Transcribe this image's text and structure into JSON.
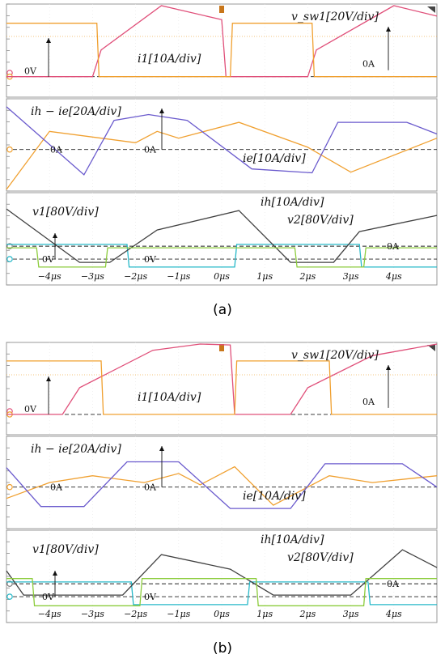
{
  "panels": [
    {
      "caption": "(a)",
      "x_ticks": [
        "−4μs",
        "−3μs",
        "−2μs",
        "−1μs",
        "0μs",
        "1μs",
        "2μs",
        "3μs",
        "4μs"
      ],
      "colors": {
        "vsw": "#e0507a",
        "i1": "#f0a030",
        "ihie": "#f0a030",
        "ie": "#6a5acd",
        "v1": "#26b8c8",
        "ih": "#404040",
        "v2": "#8ccc3c"
      },
      "labels": {
        "vsw": "v_sw1[20V/div]",
        "i1": "i1[10A/div]",
        "ihie": "ih − ie[20A/div]",
        "ie": "ie[10A/div]",
        "v1": "v1[80V/div]",
        "ih": "ih[10A/div]",
        "v2": "v2[80V/div]"
      },
      "zero_labels": {
        "top_v": "0V",
        "top_a": "0A",
        "mid_a1": "0A",
        "mid_a2": "0A",
        "bot_v1": "0V",
        "bot_v2": "0V",
        "bot_a": "0A"
      }
    },
    {
      "caption": "(b)",
      "x_ticks": [
        "−4μs",
        "−3μs",
        "−2μs",
        "−1μs",
        "0μs",
        "1μs",
        "2μs",
        "3μs",
        "4μs"
      ],
      "colors": {
        "vsw": "#e0507a",
        "i1": "#f0a030",
        "ihie": "#f0a030",
        "ie": "#6a5acd",
        "v1": "#26b8c8",
        "ih": "#404040",
        "v2": "#8ccc3c"
      },
      "labels": {
        "vsw": "v_sw1[20V/div]",
        "i1": "i1[10A/div]",
        "ihie": "ih − ie[20A/div]",
        "ie": "ie[10A/div]",
        "v1": "v1[80V/div]",
        "ih": "ih[10A/div]",
        "v2": "v2[80V/div]"
      },
      "zero_labels": {
        "top_v": "0V",
        "top_a": "0A",
        "mid_a1": "0A",
        "mid_a2": "0A",
        "bot_v1": "0V",
        "bot_v2": "0V",
        "bot_a": "0A"
      }
    }
  ],
  "chart_data": [
    {
      "type": "line",
      "x": [
        -5,
        -4,
        -3,
        -2,
        -1,
        0,
        1,
        2,
        3,
        4,
        5
      ],
      "series": [
        {
          "name": "v_sw1[20V/div]",
          "points": [
            [
              -5,
              0
            ],
            [
              -3,
              0
            ],
            [
              -2.8,
              1.5
            ],
            [
              -1.4,
              4.0
            ],
            [
              0,
              3.2
            ],
            [
              0.1,
              0
            ],
            [
              2,
              0
            ],
            [
              2.2,
              1.5
            ],
            [
              4,
              4.0
            ],
            [
              5,
              3.4
            ]
          ]
        },
        {
          "name": "i1[10A/div]",
          "points": [
            [
              -5,
              3.3
            ],
            [
              -2.9,
              3.3
            ],
            [
              -2.85,
              0
            ],
            [
              0.2,
              0
            ],
            [
              0.25,
              3.3
            ],
            [
              2.1,
              3.3
            ],
            [
              2.15,
              0
            ],
            [
              5,
              0
            ]
          ]
        },
        {
          "name": "ih − ie[20A/div]",
          "points": [
            [
              -5,
              -2
            ],
            [
              -4,
              0.8
            ],
            [
              -2,
              0.3
            ],
            [
              -1.5,
              0.8
            ],
            [
              -1,
              0.5
            ],
            [
              0.4,
              1.2
            ],
            [
              2,
              0.1
            ],
            [
              3,
              -1.0
            ],
            [
              5,
              0.5
            ]
          ]
        },
        {
          "name": "ie[10A/div]",
          "points": [
            [
              -5,
              2.2
            ],
            [
              -3.2,
              -1.3
            ],
            [
              -2.5,
              1.5
            ],
            [
              -1.7,
              1.8
            ],
            [
              -0.8,
              1.5
            ],
            [
              0.7,
              -1.0
            ],
            [
              2.1,
              -1.2
            ],
            [
              2.7,
              1.4
            ],
            [
              4.3,
              1.4
            ],
            [
              5,
              0.8
            ]
          ]
        },
        {
          "name": "v1[80V/div]",
          "points": [
            [
              -5,
              1.3
            ],
            [
              -2.2,
              1.3
            ],
            [
              -2.15,
              -0.7
            ],
            [
              0.3,
              -0.7
            ],
            [
              0.35,
              1.3
            ],
            [
              3.2,
              1.3
            ],
            [
              3.25,
              -0.7
            ],
            [
              5,
              -0.7
            ]
          ]
        },
        {
          "name": "ih[10A/div]",
          "points": [
            [
              -5,
              2.3
            ],
            [
              -3.3,
              -1.0
            ],
            [
              -2.6,
              -1.0
            ],
            [
              -1.5,
              1.0
            ],
            [
              0.4,
              2.2
            ],
            [
              1.6,
              -1.0
            ],
            [
              2.6,
              -1.0
            ],
            [
              3.2,
              0.9
            ],
            [
              5,
              1.9
            ]
          ]
        },
        {
          "name": "v2[80V/div]",
          "points": [
            [
              -5,
              1.0
            ],
            [
              -4.3,
              1.0
            ],
            [
              -4.25,
              -0.7
            ],
            [
              -2.7,
              -0.7
            ],
            [
              -2.65,
              1.0
            ],
            [
              1.7,
              1.0
            ],
            [
              1.75,
              -0.7
            ],
            [
              3.3,
              -0.7
            ],
            [
              3.35,
              1.0
            ],
            [
              5,
              1.0
            ]
          ]
        }
      ]
    },
    {
      "type": "line",
      "x": [
        -5,
        -4,
        -3,
        -2,
        -1,
        0,
        1,
        2,
        3,
        4,
        5
      ],
      "series": [
        {
          "name": "v_sw1[20V/div]",
          "points": [
            [
              -5,
              0
            ],
            [
              -3.7,
              0
            ],
            [
              -3.3,
              1.5
            ],
            [
              -1.6,
              3.6
            ],
            [
              -0.5,
              4.0
            ],
            [
              0.2,
              3.9
            ],
            [
              0.3,
              0
            ],
            [
              1.6,
              0
            ],
            [
              2.0,
              1.5
            ],
            [
              3.5,
              3.3
            ],
            [
              5,
              4.0
            ]
          ]
        },
        {
          "name": "i1[10A/div]",
          "points": [
            [
              -5,
              3.3
            ],
            [
              -2.8,
              3.3
            ],
            [
              -2.75,
              0
            ],
            [
              0.3,
              0
            ],
            [
              0.35,
              3.3
            ],
            [
              2.5,
              3.3
            ],
            [
              2.55,
              0
            ],
            [
              5,
              0
            ]
          ]
        },
        {
          "name": "ih − ie[20A/div]",
          "points": [
            [
              -5,
              -0.5
            ],
            [
              -4,
              0.2
            ],
            [
              -3,
              0.5
            ],
            [
              -1.8,
              0.2
            ],
            [
              -1,
              0.6
            ],
            [
              -0.5,
              0.1
            ],
            [
              0.3,
              0.9
            ],
            [
              1.2,
              -0.8
            ],
            [
              2.5,
              0.5
            ],
            [
              3.5,
              0.2
            ],
            [
              5,
              0.5
            ]
          ]
        },
        {
          "name": "ie[10A/div]",
          "points": [
            [
              -5,
              1.0
            ],
            [
              -4.2,
              -1.0
            ],
            [
              -3.2,
              -1.0
            ],
            [
              -2.2,
              1.3
            ],
            [
              -1,
              1.3
            ],
            [
              0.2,
              -1.1
            ],
            [
              1.6,
              -1.1
            ],
            [
              2.4,
              1.2
            ],
            [
              4.2,
              1.2
            ],
            [
              5,
              0.0
            ]
          ]
        },
        {
          "name": "v1[80V/div]",
          "points": [
            [
              -5,
              1.3
            ],
            [
              -2.1,
              1.3
            ],
            [
              -2.05,
              -0.7
            ],
            [
              0.6,
              -0.7
            ],
            [
              0.65,
              1.3
            ],
            [
              3.4,
              1.3
            ],
            [
              3.45,
              -0.7
            ],
            [
              5,
              -0.7
            ]
          ]
        },
        {
          "name": "ih[10A/div]",
          "points": [
            [
              -5,
              0.8
            ],
            [
              -4.6,
              -0.7
            ],
            [
              -2.3,
              -0.7
            ],
            [
              -1.4,
              1.8
            ],
            [
              0.2,
              0.9
            ],
            [
              1.2,
              -0.7
            ],
            [
              3.0,
              -0.7
            ],
            [
              4.2,
              2.1
            ],
            [
              5,
              1.0
            ]
          ]
        },
        {
          "name": "v2[80V/div]",
          "points": [
            [
              -5,
              1.6
            ],
            [
              -4.4,
              1.6
            ],
            [
              -4.35,
              -0.8
            ],
            [
              -1.9,
              -0.8
            ],
            [
              -1.85,
              1.6
            ],
            [
              0.8,
              1.6
            ],
            [
              0.85,
              -0.8
            ],
            [
              3.3,
              -0.8
            ],
            [
              3.35,
              1.6
            ],
            [
              5,
              1.6
            ]
          ]
        }
      ]
    }
  ]
}
